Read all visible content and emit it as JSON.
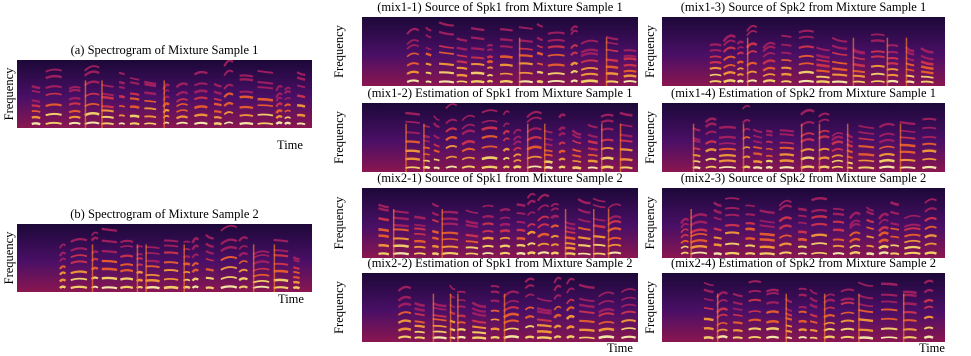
{
  "panels": [
    {
      "title": "(a) Spectrogram of Mixture Sample 1",
      "y_label": "Frequency",
      "x_label": "Time"
    },
    {
      "title": "(b) Spectrogram of Mixture Sample 2",
      "y_label": "Frequency",
      "x_label": "Time"
    },
    {
      "title": "(mix1-1) Source of Spk1 from Mixture Sample 1",
      "y_label": "Frequency"
    },
    {
      "title": "(mix1-2) Estimation of Spk1 from Mixture Sample 1",
      "y_label": "Frequency"
    },
    {
      "title": "(mix2-1) Source of Spk1 from Mixture Sample 2",
      "y_label": "Frequency"
    },
    {
      "title": "(mix2-2) Estimation of Spk1 from Mixture Sample 2",
      "y_label": "Frequency",
      "x_label": "Time"
    },
    {
      "title": "(mix1-3) Source of Spk2 from Mixture Sample 1",
      "y_label": "Frequency"
    },
    {
      "title": "(mix1-4) Estimation of Spk2 from Mixture Sample 1",
      "y_label": "Frequency"
    },
    {
      "title": "(mix2-3) Source of Spk2 from Mixture Sample 2",
      "y_label": "Frequency"
    },
    {
      "title": "(mix2-4) Estimation of Spk2 from Mixture Sample 2",
      "y_label": "Frequency",
      "x_label": "Time"
    }
  ]
}
